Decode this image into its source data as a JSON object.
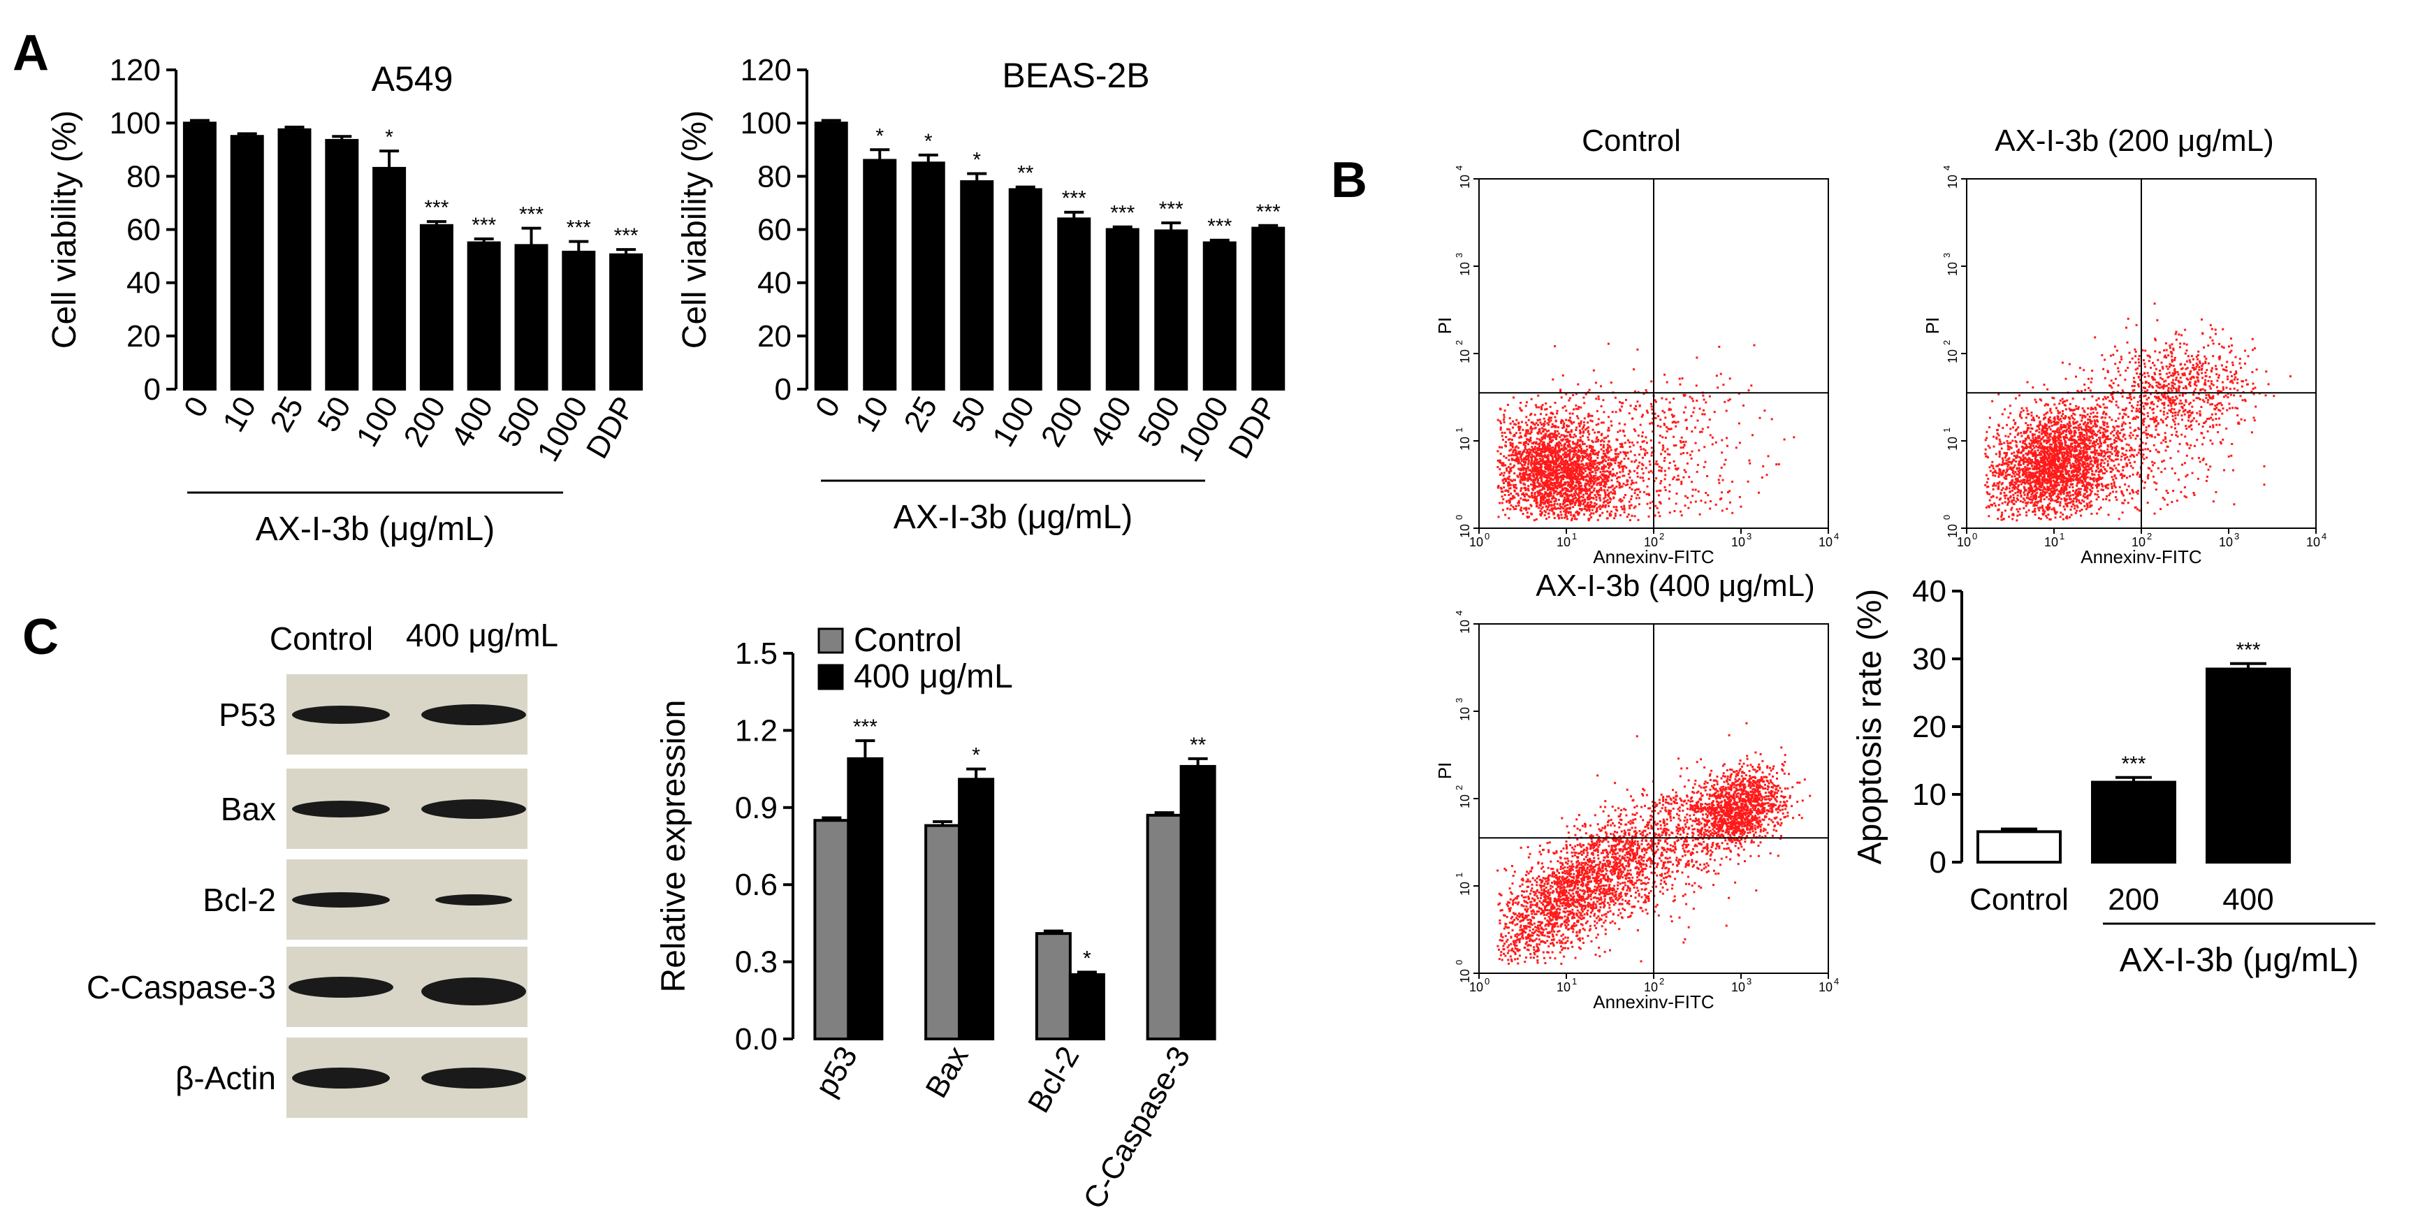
{
  "panels": {
    "A": "A",
    "B": "B",
    "C": "C"
  },
  "chart_data": [
    {
      "id": "A549",
      "type": "bar",
      "title": "A549",
      "ylabel": "Cell viability (%)",
      "xgroup_label": "AX-I-3b (μg/mL)",
      "ylim": [
        0,
        120
      ],
      "yticks": [
        0,
        20,
        40,
        60,
        80,
        100,
        120
      ],
      "categories": [
        "0",
        "10",
        "25",
        "50",
        "100",
        "200",
        "400",
        "500",
        "1000",
        "DDP"
      ],
      "values": [
        100,
        95,
        97.5,
        93.5,
        83,
        61.5,
        55,
        54,
        51.5,
        50.5
      ],
      "errors": [
        1,
        1,
        1,
        1.5,
        6.5,
        1.5,
        1.5,
        6.5,
        4,
        2
      ],
      "stars": [
        "",
        "",
        "",
        "",
        "*",
        "***",
        "***",
        "***",
        "***",
        "***"
      ]
    },
    {
      "id": "BEAS-2B",
      "type": "bar",
      "title": "BEAS-2B",
      "ylabel": "Cell viability (%)",
      "xgroup_label": "AX-I-3b (μg/mL)",
      "ylim": [
        0,
        120
      ],
      "yticks": [
        0,
        20,
        40,
        60,
        80,
        100,
        120
      ],
      "categories": [
        "0",
        "10",
        "25",
        "50",
        "100",
        "200",
        "400",
        "500",
        "1000",
        "DDP"
      ],
      "values": [
        100,
        86,
        85,
        78,
        75,
        64,
        60,
        59.5,
        55,
        60.5
      ],
      "errors": [
        1,
        4,
        3,
        3,
        1,
        2.5,
        1,
        3,
        1,
        1
      ],
      "stars": [
        "",
        "*",
        "*",
        "*",
        "**",
        "***",
        "***",
        "***",
        "***",
        "***"
      ]
    },
    {
      "id": "apoptosis",
      "type": "bar",
      "ylabel": "Apoptosis rate (%)",
      "xgroup_label": "AX-I-3b (μg/mL)",
      "ylim": [
        0,
        40
      ],
      "yticks": [
        0,
        10,
        20,
        30,
        40
      ],
      "categories": [
        "Control",
        "200",
        "400"
      ],
      "values": [
        4.5,
        11.8,
        28.5
      ],
      "errors": [
        0.4,
        0.7,
        0.8
      ],
      "colors": [
        "#ffffff",
        "#000000",
        "#000000"
      ],
      "stars": [
        "",
        "***",
        "***"
      ]
    },
    {
      "id": "relative_expression",
      "type": "bar",
      "ylabel": "Relative  expression",
      "ylim": [
        0,
        1.5
      ],
      "yticks": [
        "0.0",
        "0.3",
        "0.6",
        "0.9",
        "1.2",
        "1.5"
      ],
      "categories": [
        "p53",
        "Bax",
        "Bcl-2",
        "C-Caspase-3"
      ],
      "series": [
        {
          "name": "Control",
          "color": "#808080",
          "values": [
            0.85,
            0.83,
            0.41,
            0.87
          ],
          "errors": [
            0.01,
            0.015,
            0.01,
            0.01
          ]
        },
        {
          "name": "400 μg/mL",
          "color": "#000000",
          "values": [
            1.09,
            1.01,
            0.25,
            1.06
          ],
          "errors": [
            0.07,
            0.04,
            0.01,
            0.03
          ],
          "stars": [
            "***",
            "*",
            "*",
            "**"
          ]
        }
      ]
    },
    {
      "id": "flow_control",
      "type": "scatter",
      "title": "Control",
      "xlabel": "Annexinv-FITC",
      "ylabel": "PI",
      "xlim": [
        0,
        4
      ],
      "ylim": [
        0,
        4
      ],
      "scale": "log",
      "threshold_x": 2,
      "threshold_y": 1.55
    },
    {
      "id": "flow_200",
      "type": "scatter",
      "title": "AX-I-3b (200 μg/mL)",
      "xlabel": "Annexinv-FITC",
      "ylabel": "PI",
      "xlim": [
        0,
        4
      ],
      "ylim": [
        0,
        4
      ],
      "scale": "log",
      "threshold_x": 2,
      "threshold_y": 1.55
    },
    {
      "id": "flow_400",
      "type": "scatter",
      "title": "AX-I-3b (400 μg/mL)",
      "xlabel": "Annexinv-FITC",
      "ylabel": "PI",
      "xlim": [
        0,
        4
      ],
      "ylim": [
        0,
        4
      ],
      "scale": "log",
      "threshold_x": 2,
      "threshold_y": 1.55
    }
  ],
  "blot": {
    "headers": [
      "Control",
      "400 μg/mL"
    ],
    "rows": [
      "P53",
      "Bax",
      "Bcl-2",
      "C-Caspase-3",
      "β-Actin"
    ]
  },
  "colors": {
    "dot": "#ff1a1a",
    "blot_bg": "#d9d6c8",
    "band": "#1a1a1a"
  }
}
